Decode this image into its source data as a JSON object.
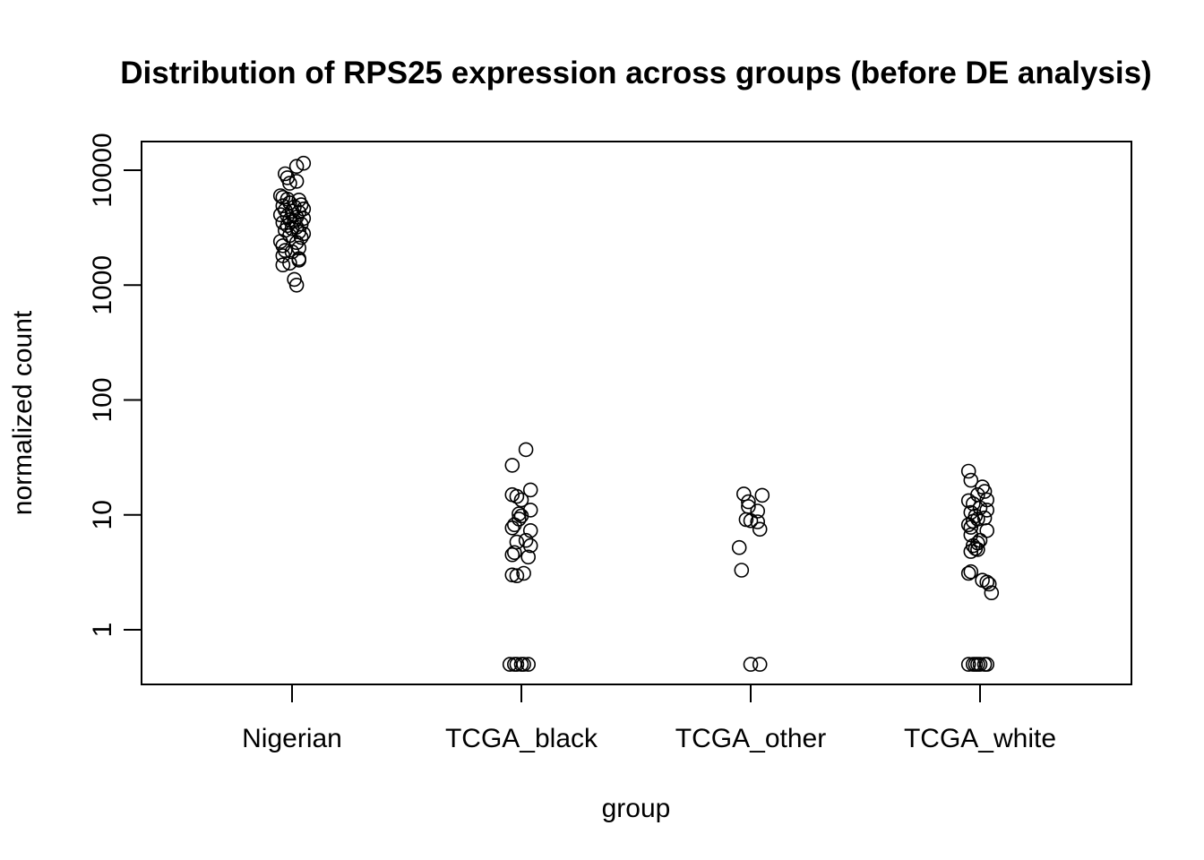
{
  "chart_data": {
    "type": "scatter",
    "title": "Distribution of RPS25 expression across groups (before DE analysis)",
    "xlabel": "group",
    "ylabel": "normalized count",
    "y_scale": "log",
    "ylim": [
      0.5,
      12000
    ],
    "categories": [
      "Nigerian",
      "TCGA_black",
      "TCGA_other",
      "TCGA_white"
    ],
    "y_ticks": [
      {
        "value": 1,
        "label": "1"
      },
      {
        "value": 10,
        "label": "10"
      },
      {
        "value": 100,
        "label": "100"
      },
      {
        "value": 1000,
        "label": "1000"
      },
      {
        "value": 10000,
        "label": "10000"
      }
    ],
    "grid": false,
    "legend": "none",
    "series": [
      {
        "values": [
          {
            "jitter": 0.05,
            "y": 11500
          },
          {
            "jitter": 0.02,
            "y": 10800
          },
          {
            "jitter": -0.03,
            "y": 9300
          },
          {
            "jitter": -0.02,
            "y": 8600
          },
          {
            "jitter": 0.02,
            "y": 8000
          },
          {
            "jitter": -0.01,
            "y": 7700
          },
          {
            "jitter": -0.05,
            "y": 6000
          },
          {
            "jitter": -0.04,
            "y": 5800
          },
          {
            "jitter": -0.02,
            "y": 5600
          },
          {
            "jitter": 0.03,
            "y": 5500
          },
          {
            "jitter": -0.01,
            "y": 5200
          },
          {
            "jitter": 0.04,
            "y": 5000
          },
          {
            "jitter": -0.04,
            "y": 4900
          },
          {
            "jitter": 0.01,
            "y": 4800
          },
          {
            "jitter": 0.05,
            "y": 4600
          },
          {
            "jitter": -0.03,
            "y": 4500
          },
          {
            "jitter": 0.0,
            "y": 4400
          },
          {
            "jitter": 0.03,
            "y": 4300
          },
          {
            "jitter": -0.05,
            "y": 4100
          },
          {
            "jitter": -0.02,
            "y": 4000
          },
          {
            "jitter": 0.02,
            "y": 3900
          },
          {
            "jitter": 0.05,
            "y": 3800
          },
          {
            "jitter": -0.01,
            "y": 3700
          },
          {
            "jitter": 0.01,
            "y": 3600
          },
          {
            "jitter": -0.04,
            "y": 3500
          },
          {
            "jitter": 0.04,
            "y": 3400
          },
          {
            "jitter": -0.02,
            "y": 3300
          },
          {
            "jitter": 0.02,
            "y": 3200
          },
          {
            "jitter": 0.0,
            "y": 3100
          },
          {
            "jitter": -0.03,
            "y": 3000
          },
          {
            "jitter": 0.03,
            "y": 2900
          },
          {
            "jitter": 0.05,
            "y": 2800
          },
          {
            "jitter": -0.01,
            "y": 2700
          },
          {
            "jitter": 0.04,
            "y": 2600
          },
          {
            "jitter": -0.05,
            "y": 2400
          },
          {
            "jitter": 0.02,
            "y": 2350
          },
          {
            "jitter": -0.04,
            "y": 2200
          },
          {
            "jitter": 0.03,
            "y": 2100
          },
          {
            "jitter": -0.03,
            "y": 2000
          },
          {
            "jitter": 0.0,
            "y": 1950
          },
          {
            "jitter": -0.04,
            "y": 1800
          },
          {
            "jitter": 0.03,
            "y": 1700
          },
          {
            "jitter": 0.03,
            "y": 1650
          },
          {
            "jitter": -0.01,
            "y": 1550
          },
          {
            "jitter": -0.04,
            "y": 1500
          },
          {
            "jitter": 0.01,
            "y": 1120
          },
          {
            "jitter": 0.02,
            "y": 1000
          }
        ]
      },
      {
        "values": [
          {
            "jitter": 0.02,
            "y": 37
          },
          {
            "jitter": -0.04,
            "y": 27
          },
          {
            "jitter": 0.04,
            "y": 16.5
          },
          {
            "jitter": -0.04,
            "y": 15
          },
          {
            "jitter": -0.02,
            "y": 14.5
          },
          {
            "jitter": 0.0,
            "y": 13.5
          },
          {
            "jitter": 0.04,
            "y": 11
          },
          {
            "jitter": -0.01,
            "y": 10.2
          },
          {
            "jitter": 0.0,
            "y": 9.8
          },
          {
            "jitter": -0.01,
            "y": 9.2
          },
          {
            "jitter": -0.03,
            "y": 8.2
          },
          {
            "jitter": -0.04,
            "y": 7.7
          },
          {
            "jitter": 0.04,
            "y": 7.3
          },
          {
            "jitter": 0.02,
            "y": 6.0
          },
          {
            "jitter": -0.02,
            "y": 5.8
          },
          {
            "jitter": 0.04,
            "y": 5.4
          },
          {
            "jitter": -0.03,
            "y": 4.7
          },
          {
            "jitter": -0.04,
            "y": 4.5
          },
          {
            "jitter": 0.03,
            "y": 4.3
          },
          {
            "jitter": 0.01,
            "y": 3.1
          },
          {
            "jitter": -0.04,
            "y": 3.0
          },
          {
            "jitter": -0.02,
            "y": 2.95
          },
          {
            "jitter": -0.05,
            "y": 0.5
          },
          {
            "jitter": -0.03,
            "y": 0.5
          },
          {
            "jitter": -0.02,
            "y": 0.5
          },
          {
            "jitter": 0.0,
            "y": 0.5
          },
          {
            "jitter": 0.01,
            "y": 0.5
          },
          {
            "jitter": 0.03,
            "y": 0.5
          }
        ]
      },
      {
        "values": [
          {
            "jitter": -0.03,
            "y": 15.2
          },
          {
            "jitter": 0.05,
            "y": 14.8
          },
          {
            "jitter": -0.01,
            "y": 13
          },
          {
            "jitter": -0.01,
            "y": 11.8
          },
          {
            "jitter": 0.03,
            "y": 10.8
          },
          {
            "jitter": -0.02,
            "y": 9.1
          },
          {
            "jitter": 0.0,
            "y": 8.9
          },
          {
            "jitter": 0.03,
            "y": 8.7
          },
          {
            "jitter": 0.04,
            "y": 7.5
          },
          {
            "jitter": -0.05,
            "y": 5.2
          },
          {
            "jitter": -0.04,
            "y": 3.3
          },
          {
            "jitter": 0.0,
            "y": 0.5
          },
          {
            "jitter": 0.04,
            "y": 0.5
          }
        ]
      },
      {
        "values": [
          {
            "jitter": -0.05,
            "y": 24
          },
          {
            "jitter": -0.04,
            "y": 20
          },
          {
            "jitter": 0.01,
            "y": 17.5
          },
          {
            "jitter": 0.02,
            "y": 16
          },
          {
            "jitter": -0.01,
            "y": 15
          },
          {
            "jitter": 0.03,
            "y": 13.5
          },
          {
            "jitter": -0.05,
            "y": 13.3
          },
          {
            "jitter": -0.03,
            "y": 12.5
          },
          {
            "jitter": 0.0,
            "y": 11.5
          },
          {
            "jitter": 0.03,
            "y": 11
          },
          {
            "jitter": -0.04,
            "y": 10.5
          },
          {
            "jitter": -0.02,
            "y": 9.8
          },
          {
            "jitter": 0.02,
            "y": 9.4
          },
          {
            "jitter": -0.01,
            "y": 9.2
          },
          {
            "jitter": -0.03,
            "y": 8.8
          },
          {
            "jitter": -0.05,
            "y": 8.2
          },
          {
            "jitter": -0.04,
            "y": 7.8
          },
          {
            "jitter": 0.03,
            "y": 7.3
          },
          {
            "jitter": -0.04,
            "y": 6.7
          },
          {
            "jitter": 0.0,
            "y": 6.0
          },
          {
            "jitter": -0.01,
            "y": 5.7
          },
          {
            "jitter": -0.03,
            "y": 5.4
          },
          {
            "jitter": -0.02,
            "y": 5.1
          },
          {
            "jitter": -0.01,
            "y": 5.0
          },
          {
            "jitter": -0.04,
            "y": 4.8
          },
          {
            "jitter": -0.04,
            "y": 3.2
          },
          {
            "jitter": -0.05,
            "y": 3.1
          },
          {
            "jitter": 0.01,
            "y": 2.7
          },
          {
            "jitter": 0.03,
            "y": 2.6
          },
          {
            "jitter": 0.04,
            "y": 2.5
          },
          {
            "jitter": 0.05,
            "y": 2.1
          },
          {
            "jitter": -0.05,
            "y": 0.5
          },
          {
            "jitter": -0.03,
            "y": 0.5
          },
          {
            "jitter": -0.02,
            "y": 0.5
          },
          {
            "jitter": -0.01,
            "y": 0.5
          },
          {
            "jitter": 0.0,
            "y": 0.5
          },
          {
            "jitter": 0.02,
            "y": 0.5
          },
          {
            "jitter": 0.03,
            "y": 0.5
          }
        ]
      }
    ]
  }
}
